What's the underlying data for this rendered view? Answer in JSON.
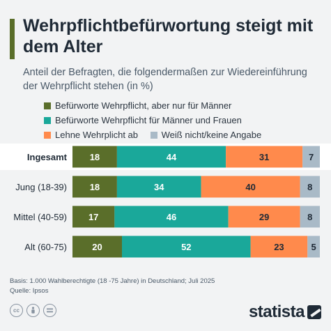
{
  "header": {
    "title": "Wehrpflichtbefürwortung steigt mit dem Alter",
    "subtitle": "Anteil der Befragten, die folgendermaßen zur Wiedereinführung der Wehrpflicht stehen (in %)"
  },
  "colors": {
    "accent": "#5a6e2a",
    "series": [
      "#5a6e2a",
      "#1aa89a",
      "#ff8a4c",
      "#a9bac7"
    ]
  },
  "chart_data": {
    "type": "bar",
    "orientation": "horizontal",
    "stacked": true,
    "categories": [
      "Ingesamt",
      "Jung (18-39)",
      "Mittel (40-59)",
      "Alt (60-75)"
    ],
    "highlighted_category": "Ingesamt",
    "series": [
      {
        "name": "Befürworte Wehrpflicht, aber nur für Männer",
        "values": [
          18,
          18,
          17,
          20
        ]
      },
      {
        "name": "Befürworte Wehrpflicht für Männer und Frauen",
        "values": [
          44,
          34,
          46,
          52
        ]
      },
      {
        "name": "Lehne Wehrplicht ab",
        "values": [
          31,
          40,
          29,
          23
        ]
      },
      {
        "name": "Weiß nicht/keine Angabe",
        "values": [
          7,
          8,
          8,
          5
        ]
      }
    ],
    "xlim": [
      0,
      100
    ],
    "legend_position": "top",
    "grid": false
  },
  "footer": {
    "basis": "Basis: 1.000 Wahlberechtigte (18 -75 Jahre) in Deutschland; Juli 2025",
    "source": "Quelle: Ipsos",
    "logo": "statista",
    "license_icons": [
      "cc-icon",
      "by-icon",
      "nd-icon"
    ]
  }
}
